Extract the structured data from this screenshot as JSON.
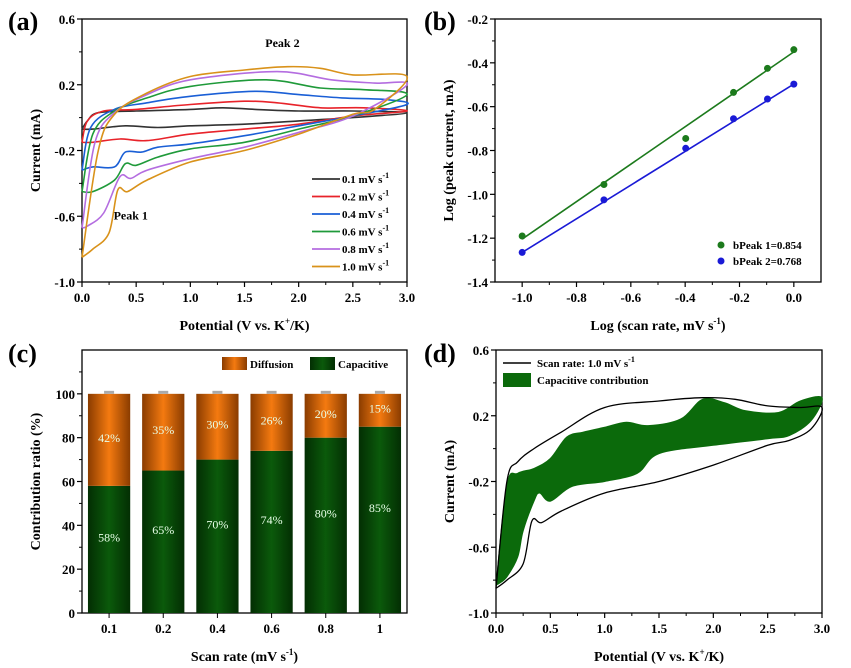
{
  "chart_data": [
    {
      "id": "a",
      "panel_label": "(a)",
      "type": "line",
      "xlabel": "Potential (V vs. K",
      "xlabel_sup": "+",
      "xlabel_tail": "/K)",
      "ylabel": "Current (mA)",
      "xlim": [
        0,
        3.0
      ],
      "ylim": [
        -1.0,
        0.6
      ],
      "xticks": [
        "0.0",
        "0.5",
        "1.0",
        "1.5",
        "2.0",
        "2.5",
        "3.0"
      ],
      "yticks": [
        "-1.0",
        "-0.6",
        "-0.2",
        "0.2",
        "0.6"
      ],
      "annotations": [
        {
          "text": "Peak 2",
          "x": 1.85,
          "y": 0.43
        },
        {
          "text": "Peak 1",
          "x": 0.45,
          "y": -0.62
        }
      ],
      "legend_position": "bottom-right",
      "series": [
        {
          "name": "0.1 mV s",
          "sup": "-1",
          "color": "#333333",
          "anodic": [
            [
              0,
              -0.07
            ],
            [
              0.05,
              -0.02
            ],
            [
              0.15,
              0.03
            ],
            [
              0.5,
              0.04
            ],
            [
              1.0,
              0.05
            ],
            [
              1.3,
              0.06
            ],
            [
              1.6,
              0.05
            ],
            [
              2.0,
              0.04
            ],
            [
              2.5,
              0.04
            ],
            [
              3.0,
              0.03
            ]
          ],
          "cathodic": [
            [
              3.0,
              0.02
            ],
            [
              2.5,
              0.0
            ],
            [
              2.0,
              -0.02
            ],
            [
              1.5,
              -0.04
            ],
            [
              1.0,
              -0.05
            ],
            [
              0.7,
              -0.06
            ],
            [
              0.4,
              -0.05
            ],
            [
              0.1,
              -0.07
            ],
            [
              0,
              -0.07
            ]
          ]
        },
        {
          "name": "0.2 mV s",
          "sup": "-1",
          "color": "#e8232a",
          "anodic": [
            [
              0,
              -0.15
            ],
            [
              0.05,
              -0.02
            ],
            [
              0.2,
              0.04
            ],
            [
              0.5,
              0.05
            ],
            [
              1.0,
              0.08
            ],
            [
              1.5,
              0.1
            ],
            [
              1.8,
              0.09
            ],
            [
              2.2,
              0.06
            ],
            [
              2.6,
              0.06
            ],
            [
              3.0,
              0.04
            ]
          ],
          "cathodic": [
            [
              3.0,
              0.03
            ],
            [
              2.5,
              0.01
            ],
            [
              2.0,
              -0.04
            ],
            [
              1.5,
              -0.07
            ],
            [
              1.0,
              -0.1
            ],
            [
              0.6,
              -0.14
            ],
            [
              0.35,
              -0.13
            ],
            [
              0.1,
              -0.15
            ],
            [
              0,
              -0.15
            ]
          ]
        },
        {
          "name": "0.4 mV s",
          "sup": "-1",
          "color": "#1a5fd6",
          "anodic": [
            [
              0,
              -0.32
            ],
            [
              0.08,
              -0.06
            ],
            [
              0.3,
              0.05
            ],
            [
              0.6,
              0.09
            ],
            [
              1.0,
              0.13
            ],
            [
              1.6,
              0.16
            ],
            [
              2.0,
              0.14
            ],
            [
              2.4,
              0.12
            ],
            [
              2.8,
              0.11
            ],
            [
              3.0,
              0.08
            ]
          ],
          "cathodic": [
            [
              3.0,
              0.05
            ],
            [
              2.5,
              0.01
            ],
            [
              2.0,
              -0.05
            ],
            [
              1.5,
              -0.11
            ],
            [
              1.0,
              -0.16
            ],
            [
              0.7,
              -0.18
            ],
            [
              0.55,
              -0.21
            ],
            [
              0.4,
              -0.21
            ],
            [
              0.3,
              -0.3
            ],
            [
              0.1,
              -0.3
            ],
            [
              0,
              -0.32
            ]
          ]
        },
        {
          "name": "0.6 mV s",
          "sup": "-1",
          "color": "#1f9a3a",
          "anodic": [
            [
              0,
              -0.45
            ],
            [
              0.1,
              -0.1
            ],
            [
              0.3,
              0.04
            ],
            [
              0.6,
              0.12
            ],
            [
              1.0,
              0.19
            ],
            [
              1.7,
              0.23
            ],
            [
              2.2,
              0.18
            ],
            [
              2.6,
              0.17
            ],
            [
              3.0,
              0.14
            ]
          ],
          "cathodic": [
            [
              3.0,
              0.08
            ],
            [
              2.5,
              0.01
            ],
            [
              2.0,
              -0.07
            ],
            [
              1.5,
              -0.15
            ],
            [
              1.0,
              -0.19
            ],
            [
              0.7,
              -0.24
            ],
            [
              0.5,
              -0.29
            ],
            [
              0.4,
              -0.28
            ],
            [
              0.3,
              -0.38
            ],
            [
              0.1,
              -0.45
            ],
            [
              0,
              -0.45
            ]
          ]
        },
        {
          "name": "0.8 mV s",
          "sup": "-1",
          "color": "#b46de0",
          "anodic": [
            [
              0,
              -0.67
            ],
            [
              0.12,
              -0.15
            ],
            [
              0.3,
              0.03
            ],
            [
              0.6,
              0.14
            ],
            [
              1.0,
              0.23
            ],
            [
              1.8,
              0.28
            ],
            [
              2.3,
              0.23
            ],
            [
              2.7,
              0.21
            ],
            [
              3.0,
              0.2
            ]
          ],
          "cathodic": [
            [
              3.0,
              0.1
            ],
            [
              2.5,
              0.01
            ],
            [
              2.0,
              -0.09
            ],
            [
              1.5,
              -0.18
            ],
            [
              1.0,
              -0.25
            ],
            [
              0.6,
              -0.32
            ],
            [
              0.45,
              -0.37
            ],
            [
              0.35,
              -0.36
            ],
            [
              0.2,
              -0.58
            ],
            [
              0.05,
              -0.66
            ],
            [
              0,
              -0.67
            ]
          ]
        },
        {
          "name": "1.0 mV s",
          "sup": "-1",
          "color": "#d9921a",
          "anodic": [
            [
              0,
              -0.85
            ],
            [
              0.15,
              -0.2
            ],
            [
              0.3,
              0.02
            ],
            [
              0.6,
              0.15
            ],
            [
              1.0,
              0.25
            ],
            [
              1.5,
              0.29
            ],
            [
              1.9,
              0.31
            ],
            [
              2.2,
              0.3
            ],
            [
              2.5,
              0.26
            ],
            [
              3.0,
              0.25
            ]
          ],
          "cathodic": [
            [
              3.0,
              0.24
            ],
            [
              2.7,
              0.05
            ],
            [
              2.5,
              0.02
            ],
            [
              2.0,
              -0.1
            ],
            [
              1.5,
              -0.2
            ],
            [
              1.0,
              -0.27
            ],
            [
              0.6,
              -0.38
            ],
            [
              0.42,
              -0.45
            ],
            [
              0.33,
              -0.44
            ],
            [
              0.25,
              -0.7
            ],
            [
              0.1,
              -0.8
            ],
            [
              0,
              -0.85
            ]
          ]
        }
      ]
    },
    {
      "id": "b",
      "panel_label": "(b)",
      "type": "scatter",
      "xlabel": "Log (scan rate, mV s",
      "xlabel_sup": "-1",
      "xlabel_tail": ")",
      "ylabel": "Log (peak current, mA)",
      "xlim": [
        -1.1,
        0.1
      ],
      "ylim": [
        -1.4,
        -0.2
      ],
      "xticks": [
        "-1.0",
        "-0.8",
        "-0.6",
        "-0.4",
        "-0.2",
        "0.0"
      ],
      "yticks": [
        "-1.4",
        "-1.2",
        "-1.0",
        "-0.8",
        "-0.6",
        "-0.4",
        "-0.2"
      ],
      "legend_position": "bottom-right",
      "series": [
        {
          "name": "bPeak 1=0.854",
          "color": "#1c7a1c",
          "slope": 0.854,
          "intercept": -0.35,
          "x": [
            -1.0,
            -0.699,
            -0.398,
            -0.222,
            -0.097,
            0.0
          ],
          "y": [
            -1.19,
            -0.955,
            -0.745,
            -0.535,
            -0.425,
            -0.34
          ]
        },
        {
          "name": "bPeak 2=0.768",
          "color": "#1a1ad6",
          "slope": 0.768,
          "intercept": -0.497,
          "x": [
            -1.0,
            -0.699,
            -0.398,
            -0.222,
            -0.097,
            0.0
          ],
          "y": [
            -1.265,
            -1.025,
            -0.79,
            -0.655,
            -0.565,
            -0.497
          ]
        }
      ]
    },
    {
      "id": "c",
      "panel_label": "(c)",
      "type": "bar",
      "xlabel": "Scan rate (mV s",
      "xlabel_sup": "-1",
      "xlabel_tail": ")",
      "ylabel": "Contribution ratio (%)",
      "ylim": [
        0,
        120
      ],
      "yticks": [
        "0",
        "20",
        "40",
        "60",
        "80",
        "100"
      ],
      "categories": [
        "0.1",
        "0.2",
        "0.4",
        "0.6",
        "0.8",
        "1"
      ],
      "legend_position": "top-right",
      "series": [
        {
          "name": "Capacitive",
          "color": "#0b5a0b",
          "values": [
            58,
            65,
            70,
            74,
            80,
            85
          ],
          "labels": [
            "58%",
            "65%",
            "70%",
            "74%",
            "80%",
            "85%"
          ]
        },
        {
          "name": "Diffusion",
          "color": "#f47a10",
          "values": [
            42,
            35,
            30,
            26,
            20,
            15
          ],
          "labels": [
            "42%",
            "35%",
            "30%",
            "26%",
            "20%",
            "15%"
          ]
        }
      ]
    },
    {
      "id": "d",
      "panel_label": "(d)",
      "type": "area",
      "xlabel": "Potential (V vs. K",
      "xlabel_sup": "+",
      "xlabel_tail": "/K)",
      "ylabel": "Current (mA)",
      "xlim": [
        0,
        3.0
      ],
      "ylim": [
        -1.0,
        0.6
      ],
      "xticks": [
        "0.0",
        "0.5",
        "1.0",
        "1.5",
        "2.0",
        "2.5",
        "3.0"
      ],
      "yticks": [
        "-1.0",
        "-0.6",
        "-0.2",
        "0.2",
        "0.6"
      ],
      "legend_position": "top-left",
      "legend": [
        {
          "name": "Scan rate: 1.0 mV s",
          "sup": "-1",
          "kind": "line",
          "color": "#000000"
        },
        {
          "name": "Capacitive contribution",
          "kind": "fill",
          "color": "#0b6a0b"
        }
      ],
      "cv_curve": [
        [
          0,
          -0.85
        ],
        [
          0.1,
          -0.2
        ],
        [
          0.2,
          -0.08
        ],
        [
          0.35,
          0.0
        ],
        [
          0.6,
          0.1
        ],
        [
          1.0,
          0.25
        ],
        [
          1.5,
          0.29
        ],
        [
          1.9,
          0.31
        ],
        [
          2.2,
          0.3
        ],
        [
          2.5,
          0.26
        ],
        [
          2.8,
          0.25
        ],
        [
          3.0,
          0.25
        ],
        [
          2.9,
          0.12
        ],
        [
          2.7,
          0.05
        ],
        [
          2.5,
          0.02
        ],
        [
          2.0,
          -0.1
        ],
        [
          1.5,
          -0.2
        ],
        [
          1.0,
          -0.27
        ],
        [
          0.6,
          -0.38
        ],
        [
          0.42,
          -0.45
        ],
        [
          0.33,
          -0.44
        ],
        [
          0.25,
          -0.7
        ],
        [
          0.1,
          -0.8
        ],
        [
          0,
          -0.85
        ]
      ],
      "capacitive_region": [
        [
          0,
          -0.83
        ],
        [
          0.1,
          -0.22
        ],
        [
          0.2,
          -0.15
        ],
        [
          0.35,
          -0.12
        ],
        [
          0.5,
          -0.06
        ],
        [
          0.65,
          0.07
        ],
        [
          0.8,
          0.1
        ],
        [
          1.0,
          0.13
        ],
        [
          1.2,
          0.16
        ],
        [
          1.4,
          0.14
        ],
        [
          1.7,
          0.18
        ],
        [
          1.9,
          0.3
        ],
        [
          2.1,
          0.28
        ],
        [
          2.3,
          0.23
        ],
        [
          2.6,
          0.22
        ],
        [
          2.8,
          0.29
        ],
        [
          3.0,
          0.31
        ],
        [
          2.9,
          0.17
        ],
        [
          2.7,
          0.08
        ],
        [
          2.5,
          0.06
        ],
        [
          2.0,
          0.02
        ],
        [
          1.5,
          -0.03
        ],
        [
          1.3,
          -0.15
        ],
        [
          1.0,
          -0.2
        ],
        [
          0.7,
          -0.23
        ],
        [
          0.5,
          -0.32
        ],
        [
          0.4,
          -0.27
        ],
        [
          0.35,
          -0.32
        ],
        [
          0.25,
          -0.5
        ],
        [
          0.2,
          -0.66
        ],
        [
          0.1,
          -0.78
        ],
        [
          0.03,
          -0.82
        ],
        [
          0,
          -0.83
        ]
      ]
    }
  ]
}
